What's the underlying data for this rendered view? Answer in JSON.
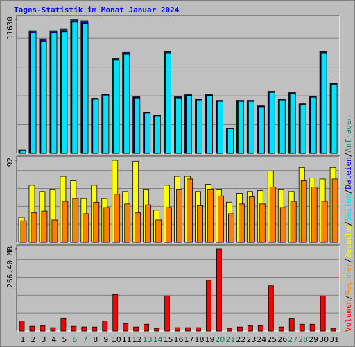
{
  "chart_data": [
    {
      "type": "bar",
      "title": "Tages-Statistik im Monat Januar 2024",
      "ylim": [
        0,
        11630
      ],
      "yticks": [
        11630
      ],
      "series": [
        {
          "name": "Anfragen",
          "color": "#00805c",
          "values": [
            290,
            10660,
            9930,
            10660,
            10780,
            11630,
            11510,
            4790,
            5150,
            8240,
            8780,
            4910,
            3570,
            3330,
            8840,
            4910,
            5090,
            4720,
            5090,
            4600,
            2180,
            4600,
            4600,
            4120,
            5390,
            4720,
            5270,
            4300,
            4970,
            8840,
            6120
          ]
        },
        {
          "name": "Dateien",
          "color": "#0000ff",
          "values": [
            285,
            10550,
            9830,
            10550,
            10670,
            11510,
            11400,
            4750,
            5100,
            8160,
            8700,
            4860,
            3540,
            3290,
            8760,
            4860,
            5040,
            4680,
            5040,
            4560,
            2160,
            4560,
            4560,
            4080,
            5330,
            4680,
            5220,
            4260,
            4920,
            8760,
            6060
          ]
        },
        {
          "name": "Seiten",
          "color": "#00e0ff",
          "values": [
            280,
            10450,
            9740,
            10450,
            10560,
            11400,
            11290,
            4700,
            5050,
            8080,
            8610,
            4810,
            3500,
            3260,
            8670,
            4810,
            4990,
            4630,
            4990,
            4510,
            2140,
            4510,
            4510,
            4040,
            5280,
            4630,
            5170,
            4220,
            4870,
            8670,
            6000
          ]
        }
      ]
    },
    {
      "type": "bar",
      "ylim": [
        0,
        92
      ],
      "yticks": [
        92
      ],
      "series": [
        {
          "name": "Besuche",
          "color": "#ffff00",
          "values": [
            28,
            64,
            57,
            59,
            74,
            69,
            49,
            64,
            49,
            92,
            57,
            91,
            59,
            36,
            64,
            74,
            74,
            57,
            65,
            59,
            45,
            55,
            57,
            58,
            80,
            59,
            57,
            84,
            72,
            71,
            84
          ]
        },
        {
          "name": "Rechner",
          "color": "#ff8000",
          "values": [
            24,
            33,
            35,
            25,
            46,
            49,
            32,
            45,
            39,
            54,
            43,
            33,
            42,
            25,
            39,
            59,
            71,
            41,
            59,
            52,
            32,
            43,
            51,
            43,
            62,
            39,
            46,
            69,
            62,
            46,
            71
          ]
        }
      ]
    },
    {
      "type": "bar",
      "ylim": [
        0,
        266.4
      ],
      "yticks": [
        {
          "value": 266.4,
          "label": "266.40 MB"
        }
      ],
      "series": [
        {
          "name": "Volumen",
          "color": "#ff0000",
          "values": [
            33,
            15.4,
            17.6,
            11,
            41.8,
            15.4,
            13.2,
            13.2,
            33,
            118.8,
            24.2,
            13.2,
            22,
            8.8,
            114.4,
            11,
            11,
            11,
            165,
            266.4,
            8.8,
            13.2,
            17.6,
            17.6,
            147.4,
            13.2,
            41.8,
            22,
            22,
            114.4,
            8.8
          ]
        }
      ],
      "categories": [
        "1",
        "2",
        "3",
        "4",
        "5",
        "6",
        "7",
        "8",
        "9",
        "10",
        "11",
        "12",
        "13",
        "14",
        "15",
        "16",
        "17",
        "18",
        "19",
        "20",
        "21",
        "22",
        "23",
        "24",
        "25",
        "26",
        "27",
        "28",
        "29",
        "30",
        "31"
      ],
      "highlight_color": "#00805c",
      "highlighted": [
        5,
        6,
        12,
        13,
        19,
        20,
        26,
        27
      ]
    }
  ],
  "legend_separator": "/"
}
